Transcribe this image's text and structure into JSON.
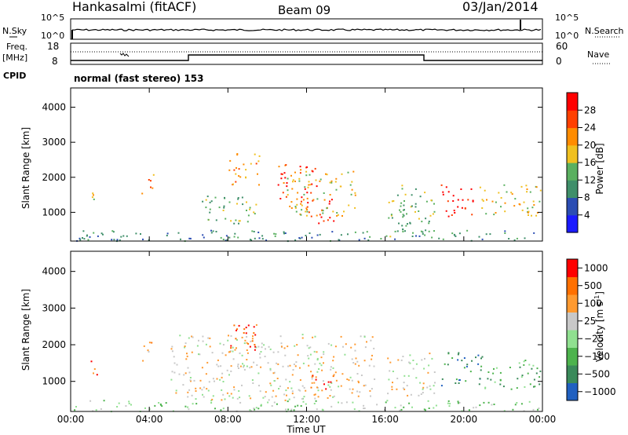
{
  "header": {
    "station": "Hankasalmi (fitACF)",
    "beam": "Beam 09",
    "date": "03/Jan/2014"
  },
  "sky_panel": {
    "left_label": "N.Sky",
    "right_label": "N.Search",
    "left_ticks": [
      "10^5",
      "10^0"
    ],
    "right_ticks": [
      "10^5",
      "10^0"
    ]
  },
  "freq_panel": {
    "left_label_1": "Freq.",
    "left_label_2": "[MHz]",
    "left_ticks": [
      "18",
      "8"
    ],
    "right_label": "Nave",
    "right_ticks": [
      "60",
      "0"
    ],
    "cpid_label": "CPID",
    "cpid_text": "normal (fast stereo) 153"
  },
  "chart_data": [
    {
      "type": "heatmap",
      "title": "",
      "xlabel": "",
      "ylabel": "Slant Range [km]",
      "x_ticks": [
        "00:00",
        "04:00",
        "08:00",
        "12:00",
        "16:00",
        "20:00",
        "00:00"
      ],
      "x_range_hours": [
        0,
        24
      ],
      "y_ticks": [
        1000,
        2000,
        3000,
        4000
      ],
      "ylim": [
        180,
        4550
      ],
      "colorbar_label": "Power [dB]",
      "colorbar_ticks": [
        "4",
        "8",
        "12",
        "16",
        "20",
        "24",
        "28"
      ],
      "colors": [
        "#1a1aff",
        "#2b4db3",
        "#3f8f6a",
        "#5ab060",
        "#f0c020",
        "#ff8c00",
        "#ff4000",
        "#ff0000"
      ],
      "clusters": [
        {
          "t0": 0.1,
          "t1": 23.9,
          "r0": 200,
          "r1": 500,
          "level": 2
        },
        {
          "t0": 1.0,
          "t1": 1.6,
          "r0": 1200,
          "r1": 1600,
          "level": 4
        },
        {
          "t0": 3.6,
          "t1": 4.2,
          "r0": 1500,
          "r1": 2100,
          "level": 5
        },
        {
          "t0": 6.5,
          "t1": 9.5,
          "r0": 700,
          "r1": 1500,
          "level": 3
        },
        {
          "t0": 8.0,
          "t1": 9.6,
          "r0": 1800,
          "r1": 2700,
          "level": 5
        },
        {
          "t0": 10.5,
          "t1": 12.5,
          "r0": 1300,
          "r1": 2400,
          "level": 6
        },
        {
          "t0": 12.0,
          "t1": 13.4,
          "r0": 700,
          "r1": 1400,
          "level": 7
        },
        {
          "t0": 11.0,
          "t1": 14.5,
          "r0": 900,
          "r1": 2200,
          "level": 4
        },
        {
          "t0": 16.0,
          "t1": 18.5,
          "r0": 300,
          "r1": 1800,
          "level": 3
        },
        {
          "t0": 18.8,
          "t1": 20.5,
          "r0": 900,
          "r1": 1800,
          "level": 7
        },
        {
          "t0": 20.8,
          "t1": 23.9,
          "r0": 900,
          "r1": 1800,
          "level": 4
        }
      ]
    },
    {
      "type": "heatmap",
      "title": "",
      "xlabel": "Time UT",
      "ylabel": "Slant Range [km]",
      "x_ticks": [
        "00:00",
        "04:00",
        "08:00",
        "12:00",
        "16:00",
        "20:00",
        "00:00"
      ],
      "x_range_hours": [
        0,
        24
      ],
      "y_ticks": [
        1000,
        2000,
        3000,
        4000
      ],
      "ylim": [
        180,
        4550
      ],
      "colorbar_label": "Velocity [m s",
      "colorbar_units_exponent": "-1",
      "colorbar_ticks": [
        "1000",
        "500",
        "100",
        "25",
        "−25",
        "−100",
        "−500",
        "−1000"
      ],
      "colors": [
        "#2060c0",
        "#3a8a5a",
        "#4db34d",
        "#90e090",
        "#c8c8c8",
        "#ff9a30",
        "#ff7000",
        "#ff0000"
      ],
      "clusters": [
        {
          "t0": 0.1,
          "t1": 23.9,
          "r0": 200,
          "r1": 500,
          "level": 3
        },
        {
          "t0": 1.0,
          "t1": 1.6,
          "r0": 1200,
          "r1": 1600,
          "level": 6
        },
        {
          "t0": 3.6,
          "t1": 4.2,
          "r0": 1500,
          "r1": 2100,
          "level": 5
        },
        {
          "t0": 5.0,
          "t1": 15.5,
          "r0": 500,
          "r1": 2300,
          "level": 4
        },
        {
          "t0": 8.0,
          "t1": 9.6,
          "r0": 1800,
          "r1": 2800,
          "level": 6
        },
        {
          "t0": 12.0,
          "t1": 13.4,
          "r0": 600,
          "r1": 1300,
          "level": 6
        },
        {
          "t0": 16.0,
          "t1": 18.5,
          "r0": 600,
          "r1": 1800,
          "level": 4
        },
        {
          "t0": 18.8,
          "t1": 21.0,
          "r0": 900,
          "r1": 1800,
          "level": 1
        },
        {
          "t0": 21.0,
          "t1": 23.9,
          "r0": 800,
          "r1": 1600,
          "level": 2
        }
      ]
    }
  ]
}
